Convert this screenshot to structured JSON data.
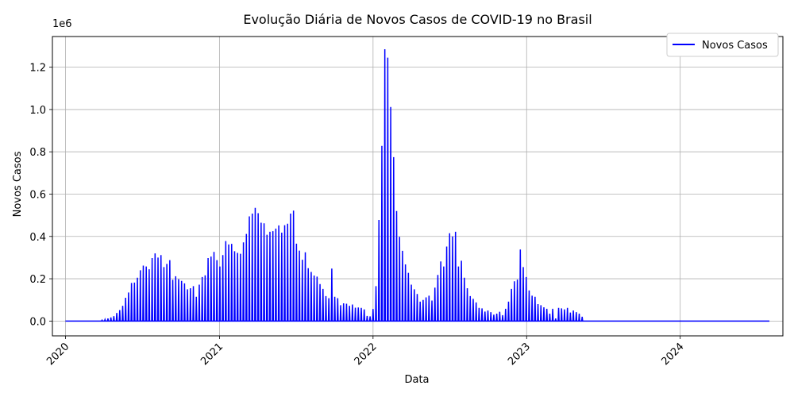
{
  "chart_data": {
    "type": "line",
    "title": "Evolução Diária de Novos Casos de COVID-19 no Brasil",
    "xlabel": "Data",
    "ylabel": "Novos Casos",
    "y_offset_label": "1e6",
    "x_ticks": [
      "2020",
      "2021",
      "2022",
      "2023",
      "2024"
    ],
    "y_ticks": [
      "0.0",
      "0.2",
      "0.4",
      "0.6",
      "0.8",
      "1.0",
      "1.2"
    ],
    "xlim": [
      "2019-12-01",
      "2024-09-01"
    ],
    "ylim": [
      -70000,
      1345000
    ],
    "grid": true,
    "legend": {
      "position": "top-right",
      "entries": [
        "Novos Casos"
      ]
    },
    "series": [
      {
        "name": "Novos Casos",
        "color": "#0000ff",
        "pattern": "weekly cumulative reported on one day per week, zero on all other days",
        "x": [
          "2020-03-28",
          "2020-04-04",
          "2020-04-11",
          "2020-04-18",
          "2020-04-25",
          "2020-05-02",
          "2020-05-09",
          "2020-05-16",
          "2020-05-23",
          "2020-05-30",
          "2020-06-06",
          "2020-06-13",
          "2020-06-20",
          "2020-06-27",
          "2020-07-04",
          "2020-07-11",
          "2020-07-18",
          "2020-07-25",
          "2020-08-01",
          "2020-08-08",
          "2020-08-15",
          "2020-08-22",
          "2020-08-29",
          "2020-09-05",
          "2020-09-12",
          "2020-09-19",
          "2020-09-26",
          "2020-10-03",
          "2020-10-10",
          "2020-10-17",
          "2020-10-24",
          "2020-10-31",
          "2020-11-07",
          "2020-11-14",
          "2020-11-21",
          "2020-11-28",
          "2020-12-05",
          "2020-12-12",
          "2020-12-19",
          "2020-12-26",
          "2021-01-02",
          "2021-01-09",
          "2021-01-16",
          "2021-01-23",
          "2021-01-30",
          "2021-02-06",
          "2021-02-13",
          "2021-02-20",
          "2021-02-27",
          "2021-03-06",
          "2021-03-13",
          "2021-03-20",
          "2021-03-27",
          "2021-04-03",
          "2021-04-10",
          "2021-04-17",
          "2021-04-24",
          "2021-05-01",
          "2021-05-08",
          "2021-05-15",
          "2021-05-22",
          "2021-05-29",
          "2021-06-05",
          "2021-06-12",
          "2021-06-19",
          "2021-06-26",
          "2021-07-03",
          "2021-07-10",
          "2021-07-17",
          "2021-07-24",
          "2021-07-31",
          "2021-08-07",
          "2021-08-14",
          "2021-08-21",
          "2021-08-28",
          "2021-09-04",
          "2021-09-11",
          "2021-09-18",
          "2021-09-25",
          "2021-10-02",
          "2021-10-09",
          "2021-10-16",
          "2021-10-23",
          "2021-10-30",
          "2021-11-06",
          "2021-11-13",
          "2021-11-20",
          "2021-11-27",
          "2021-12-04",
          "2021-12-11",
          "2021-12-18",
          "2021-12-25",
          "2022-01-01",
          "2022-01-08",
          "2022-01-15",
          "2022-01-22",
          "2022-01-29",
          "2022-02-05",
          "2022-02-12",
          "2022-02-19",
          "2022-02-26",
          "2022-03-05",
          "2022-03-12",
          "2022-03-19",
          "2022-03-26",
          "2022-04-02",
          "2022-04-09",
          "2022-04-16",
          "2022-04-23",
          "2022-04-30",
          "2022-05-07",
          "2022-05-14",
          "2022-05-21",
          "2022-05-28",
          "2022-06-04",
          "2022-06-11",
          "2022-06-18",
          "2022-06-25",
          "2022-07-02",
          "2022-07-09",
          "2022-07-16",
          "2022-07-23",
          "2022-07-30",
          "2022-08-06",
          "2022-08-13",
          "2022-08-20",
          "2022-08-27",
          "2022-09-03",
          "2022-09-10",
          "2022-09-17",
          "2022-09-24",
          "2022-10-01",
          "2022-10-08",
          "2022-10-15",
          "2022-10-22",
          "2022-10-29",
          "2022-11-05",
          "2022-11-12",
          "2022-11-19",
          "2022-11-26",
          "2022-12-03",
          "2022-12-10",
          "2022-12-17",
          "2022-12-24",
          "2022-12-31",
          "2023-01-07",
          "2023-01-14",
          "2023-01-21",
          "2023-01-28",
          "2023-02-04",
          "2023-02-11",
          "2023-02-18",
          "2023-02-25",
          "2023-03-04",
          "2023-03-11",
          "2023-03-18",
          "2023-03-25",
          "2023-04-01",
          "2023-04-08",
          "2023-04-15",
          "2023-04-22",
          "2023-04-29",
          "2023-05-06",
          "2023-05-13"
        ],
        "values": [
          4000,
          7000,
          12000,
          17000,
          23000,
          38000,
          52000,
          72000,
          110000,
          135000,
          180000,
          182000,
          205000,
          240000,
          262000,
          258000,
          245000,
          298000,
          320000,
          300000,
          312000,
          255000,
          270000,
          288000,
          195000,
          212000,
          198000,
          190000,
          178000,
          150000,
          155000,
          165000,
          115000,
          172000,
          208000,
          216000,
          298000,
          305000,
          327000,
          288000,
          258000,
          312000,
          378000,
          362000,
          365000,
          330000,
          322000,
          318000,
          372000,
          412000,
          495000,
          508000,
          535000,
          510000,
          465000,
          462000,
          408000,
          422000,
          425000,
          437000,
          452000,
          418000,
          453000,
          460000,
          508000,
          522000,
          366000,
          333000,
          290000,
          325000,
          250000,
          232000,
          215000,
          210000,
          175000,
          152000,
          118000,
          108000,
          248000,
          115000,
          108000,
          75000,
          84000,
          82000,
          72000,
          78000,
          63000,
          64000,
          62000,
          55000,
          24000,
          22000,
          57000,
          165000,
          478000,
          828000,
          1285000,
          1245000,
          1012000,
          775000,
          520000,
          398000,
          332000,
          268000,
          228000,
          172000,
          150000,
          128000,
          92000,
          100000,
          112000,
          120000,
          97000,
          158000,
          218000,
          282000,
          258000,
          352000,
          415000,
          400000,
          422000,
          258000,
          285000,
          205000,
          155000,
          118000,
          105000,
          88000,
          62000,
          60000,
          45000,
          50000,
          42000,
          30000,
          35000,
          44000,
          28000,
          58000,
          92000,
          152000,
          188000,
          196000,
          338000,
          255000,
          208000,
          145000,
          120000,
          115000,
          80000,
          75000,
          65000,
          58000,
          35000,
          58000,
          12000,
          62000,
          60000,
          55000,
          62000,
          40000,
          50000,
          42000,
          35000,
          20000
        ]
      }
    ]
  }
}
